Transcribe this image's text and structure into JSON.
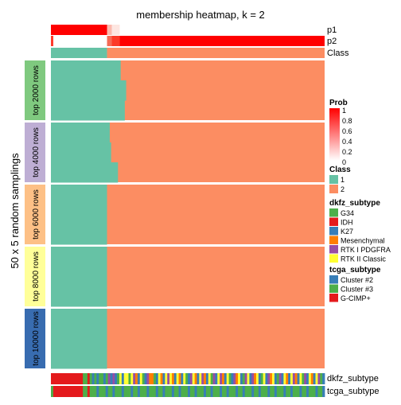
{
  "chart_data": {
    "type": "heatmap",
    "title": "membership heatmap, k = 2",
    "row_title": "50 x 5 random samplings",
    "top_annotations": [
      "p1",
      "p2",
      "Class"
    ],
    "bottom_annotations": [
      "dkfz_subtype",
      "tcga_subtype"
    ],
    "row_groups": [
      {
        "label": "top 2000 rows",
        "color": "#7FC97F",
        "class1_fraction": [
          0.255,
          0.275,
          0.27
        ]
      },
      {
        "label": "top 4000 rows",
        "color": "#BEAED4",
        "class1_fraction": [
          0.215,
          0.22,
          0.245
        ]
      },
      {
        "label": "top 6000 rows",
        "color": "#FDC086",
        "class1_fraction": [
          0.205,
          0.205,
          0.205
        ]
      },
      {
        "label": "top 8000 rows",
        "color": "#FFFF99",
        "class1_fraction": [
          0.205,
          0.205,
          0.205
        ]
      },
      {
        "label": "top 10000 rows",
        "color": "#386CB0",
        "class1_fraction": [
          0.205,
          0.205,
          0.205
        ]
      }
    ],
    "class_colors": {
      "1": "#66C2A5",
      "2": "#FC8D62"
    },
    "class_split_fraction": 0.205,
    "legends": {
      "prob": {
        "title": "Prob",
        "ticks": [
          "1",
          "0.8",
          "0.6",
          "0.4",
          "0.2",
          "0"
        ],
        "colors": [
          "#ff0000",
          "#ffffff"
        ]
      },
      "class": {
        "title": "Class",
        "items": [
          {
            "label": "1",
            "color": "#66C2A5"
          },
          {
            "label": "2",
            "color": "#FC8D62"
          }
        ]
      },
      "dkfz_subtype": {
        "title": "dkfz_subtype",
        "items": [
          {
            "label": "G34",
            "color": "#4DAF4A"
          },
          {
            "label": "IDH",
            "color": "#E41A1C"
          },
          {
            "label": "K27",
            "color": "#377EB8"
          },
          {
            "label": "Mesenchymal",
            "color": "#FF7F00"
          },
          {
            "label": "RTK I PDGFRA",
            "color": "#984EA3"
          },
          {
            "label": "RTK II Classic",
            "color": "#FFFF33"
          }
        ]
      },
      "tcga_subtype": {
        "title": "tcga_subtype",
        "items": [
          {
            "label": "Cluster #2",
            "color": "#377EB8"
          },
          {
            "label": "Cluster #3",
            "color": "#4DAF4A"
          },
          {
            "label": "G-CIMP+",
            "color": "#E41A1C"
          }
        ]
      }
    },
    "dkfz_sequence": [
      "IDH",
      "IDH",
      "IDH",
      "IDH",
      "IDH",
      "IDH",
      "IDH",
      "IDH",
      "IDH",
      "IDH",
      "IDH",
      "IDH",
      "IDH",
      "IDH",
      "G34",
      "G34",
      "IDH",
      "G34",
      "K27",
      "G34",
      "K27",
      "G34",
      "G34",
      "K27",
      "G34",
      "RTK I PDGFRA",
      "K27",
      "RTK I PDGFRA",
      "K27",
      "G34",
      "RTK II Classic",
      "K27",
      "RTK II Classic",
      "RTK II Classic",
      "G34",
      "RTK II Classic",
      "RTK I PDGFRA",
      "Mesenchymal",
      "K27",
      "RTK II Classic",
      "G34",
      "K27",
      "RTK I PDGFRA",
      "Mesenchymal",
      "Mesenchymal",
      "G34",
      "K27",
      "RTK II Classic",
      "Mesenchymal",
      "K27",
      "RTK II Classic",
      "RTK I PDGFRA",
      "RTK II Classic",
      "Mesenchymal",
      "K27",
      "RTK II Classic",
      "Mesenchymal",
      "K27",
      "RTK II Classic",
      "G34",
      "K27",
      "RTK I PDGFRA",
      "RTK II Classic",
      "Mesenchymal",
      "K27",
      "RTK II Classic",
      "RTK I PDGFRA",
      "Mesenchymal",
      "K27",
      "RTK II Classic",
      "G34",
      "RTK I PDGFRA",
      "K27",
      "RTK II Classic",
      "RTK I PDGFRA",
      "Mesenchymal",
      "K27",
      "RTK II Classic",
      "G34",
      "K27",
      "RTK I PDGFRA",
      "Mesenchymal",
      "RTK II Classic",
      "K27",
      "G34",
      "RTK I PDGFRA",
      "RTK II Classic",
      "K27",
      "RTK I PDGFRA",
      "Mesenchymal",
      "RTK II Classic",
      "K27",
      "G34",
      "RTK II Classic",
      "K27",
      "RTK I PDGFRA",
      "Mesenchymal",
      "RTK II Classic",
      "K27",
      "G34",
      "RTK I PDGFRA",
      "K27",
      "RTK II Classic",
      "Mesenchymal",
      "K27",
      "RTK II Classic",
      "RTK I PDGFRA",
      "Mesenchymal",
      "K27",
      "RTK II Classic",
      "G34",
      "RTK I PDGFRA",
      "K27",
      "RTK II Classic",
      "Mesenchymal",
      "K27",
      "RTK II Classic",
      "RTK I PDGFRA",
      "G34",
      "K27"
    ],
    "tcga_sequence": [
      "Cluster #3",
      "G-CIMP+",
      "G-CIMP+",
      "G-CIMP+",
      "G-CIMP+",
      "G-CIMP+",
      "G-CIMP+",
      "G-CIMP+",
      "G-CIMP+",
      "G-CIMP+",
      "G-CIMP+",
      "G-CIMP+",
      "G-CIMP+",
      "G-CIMP+",
      "Cluster #3",
      "Cluster #3",
      "G-CIMP+",
      "Cluster #3",
      "Cluster #3",
      "Cluster #3",
      "Cluster #2",
      "Cluster #3",
      "Cluster #3",
      "Cluster #3",
      "Cluster #2",
      "Cluster #3",
      "Cluster #3",
      "Cluster #2",
      "Cluster #3",
      "Cluster #3",
      "Cluster #3",
      "Cluster #2",
      "Cluster #3",
      "Cluster #3",
      "Cluster #3",
      "Cluster #2",
      "Cluster #3",
      "Cluster #3",
      "Cluster #2",
      "Cluster #3",
      "Cluster #3",
      "Cluster #3",
      "Cluster #2",
      "Cluster #3",
      "Cluster #3",
      "Cluster #3",
      "Cluster #2",
      "Cluster #3",
      "Cluster #3",
      "Cluster #2",
      "Cluster #3",
      "Cluster #3",
      "Cluster #3",
      "Cluster #2",
      "Cluster #3",
      "Cluster #3",
      "Cluster #2",
      "Cluster #3",
      "Cluster #3",
      "Cluster #3",
      "Cluster #2",
      "Cluster #3",
      "Cluster #3",
      "Cluster #2",
      "Cluster #3",
      "Cluster #3",
      "Cluster #3",
      "Cluster #2",
      "Cluster #3",
      "Cluster #3",
      "Cluster #2",
      "Cluster #3",
      "Cluster #3",
      "Cluster #3",
      "Cluster #2",
      "Cluster #3",
      "Cluster #3",
      "Cluster #2",
      "Cluster #3",
      "Cluster #3",
      "Cluster #3",
      "Cluster #2",
      "Cluster #3",
      "Cluster #3",
      "Cluster #2",
      "Cluster #3",
      "Cluster #3",
      "Cluster #3",
      "Cluster #2",
      "Cluster #3",
      "Cluster #3",
      "Cluster #2",
      "Cluster #3",
      "Cluster #3",
      "Cluster #3",
      "Cluster #2",
      "Cluster #3",
      "Cluster #3",
      "Cluster #2",
      "Cluster #3",
      "Cluster #3",
      "Cluster #3",
      "Cluster #2",
      "Cluster #3",
      "Cluster #3",
      "Cluster #2",
      "Cluster #3",
      "Cluster #3",
      "Cluster #3",
      "Cluster #2",
      "Cluster #3",
      "Cluster #3",
      "Cluster #2",
      "Cluster #3",
      "Cluster #3",
      "Cluster #3",
      "Cluster #2",
      "Cluster #3",
      "Cluster #3",
      "Cluster #2"
    ]
  }
}
